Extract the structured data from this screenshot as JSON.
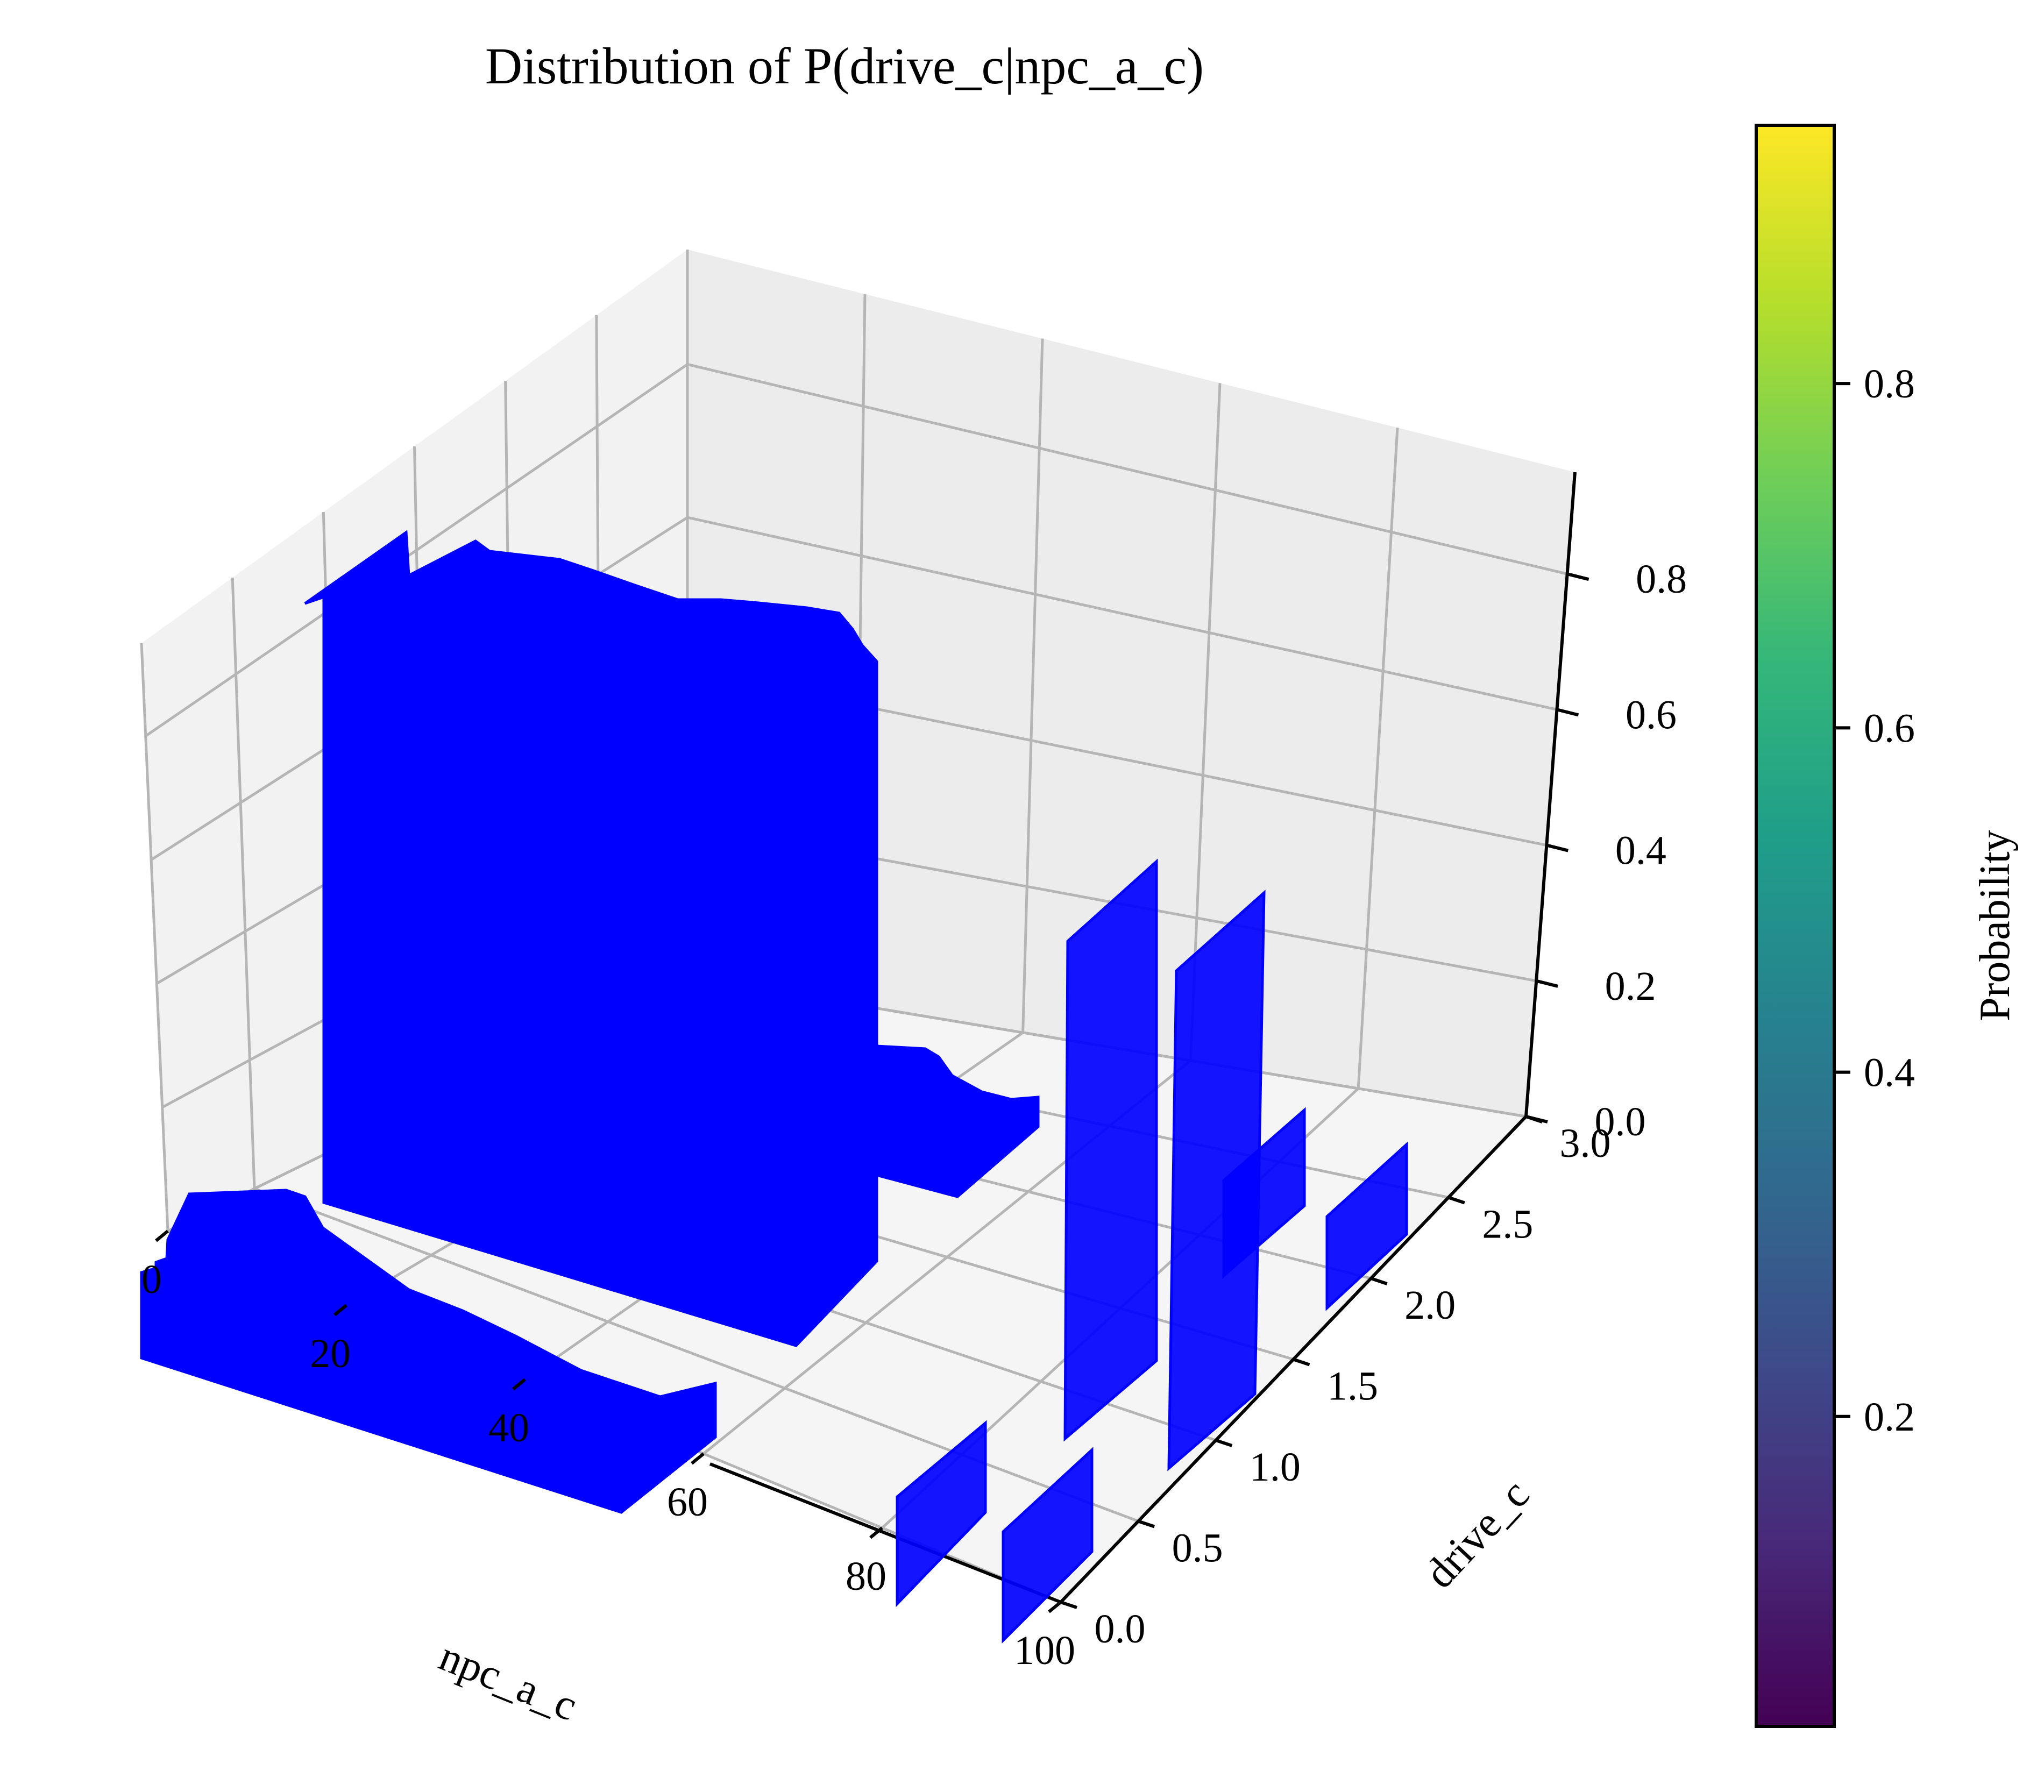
{
  "chart_data": {
    "type": "bar3d",
    "title": "Distribution of P(drive_c|npc_a_c)",
    "xlabel": "npc_a_c",
    "ylabel": "drive_c",
    "zlabel": "",
    "xlim": [
      0,
      100
    ],
    "ylim": [
      0,
      3
    ],
    "zlim": [
      0,
      0.95
    ],
    "x_ticks": [
      "0",
      "20",
      "40",
      "60",
      "80",
      "100"
    ],
    "y_ticks": [
      "0.0",
      "0.5",
      "1.0",
      "1.5",
      "2.0",
      "2.5",
      "3.0"
    ],
    "z_ticks": [
      "0.0",
      "0.2",
      "0.4",
      "0.6",
      "0.8"
    ],
    "bar_color": "#0000ff",
    "grid": true,
    "colorbar": {
      "label": "Probability",
      "ticks": [
        "0.2",
        "0.4",
        "0.6",
        "0.8"
      ],
      "range": [
        0.02,
        0.95
      ],
      "colormap": "viridis",
      "stops": [
        "#440154",
        "#482878",
        "#3e4989",
        "#31688e",
        "#26828e",
        "#1f9e89",
        "#35b779",
        "#6ece58",
        "#b5de2b",
        "#fde725"
      ]
    },
    "bar_groups": [
      {
        "drive_c": 0.0,
        "x_range": [
          0,
          56
        ],
        "heights": [
          0.06,
          0.16,
          0.2,
          0.18,
          0.14,
          0.12,
          0.1,
          0.08,
          0.07,
          0.06,
          0.05,
          0.05,
          0.05,
          0.06,
          0.05,
          0.04,
          0.04,
          0.05,
          0.04,
          0.03,
          0.03,
          0.02,
          0.02,
          0.02,
          0.02,
          0.02,
          0.02,
          0.02
        ]
      },
      {
        "drive_c": 1.0,
        "x_range": [
          0,
          56
        ],
        "heights": [
          0.88,
          0.92,
          0.9,
          0.88,
          0.9,
          0.89,
          0.9,
          0.88,
          0.9,
          0.89,
          0.88,
          0.89,
          0.9,
          0.88,
          0.89,
          0.88,
          0.9,
          0.89,
          0.88,
          0.87,
          0.89,
          0.88,
          0.87,
          0.88,
          0.87,
          0.86,
          0.86,
          0.85
        ]
      },
      {
        "drive_c": 2.0,
        "x_range": [
          56,
          76
        ],
        "heights": [
          0.12,
          0.1,
          0.08,
          0.06,
          0.05,
          0.04,
          0.03,
          0.03,
          0.03,
          0.03
        ]
      },
      {
        "bars": [
          {
            "x": 82,
            "drive_c": 0.0,
            "height": 0.15
          },
          {
            "x": 94,
            "drive_c": 0.0,
            "height": 0.2
          },
          {
            "x": 82,
            "drive_c": 1.0,
            "height": 0.85
          },
          {
            "x": 94,
            "drive_c": 1.0,
            "height": 0.8
          },
          {
            "x": 94,
            "drive_c": 2.0,
            "height": 0.12
          },
          {
            "x": 100,
            "drive_c": 3.0,
            "height": 0.1
          }
        ]
      }
    ]
  }
}
